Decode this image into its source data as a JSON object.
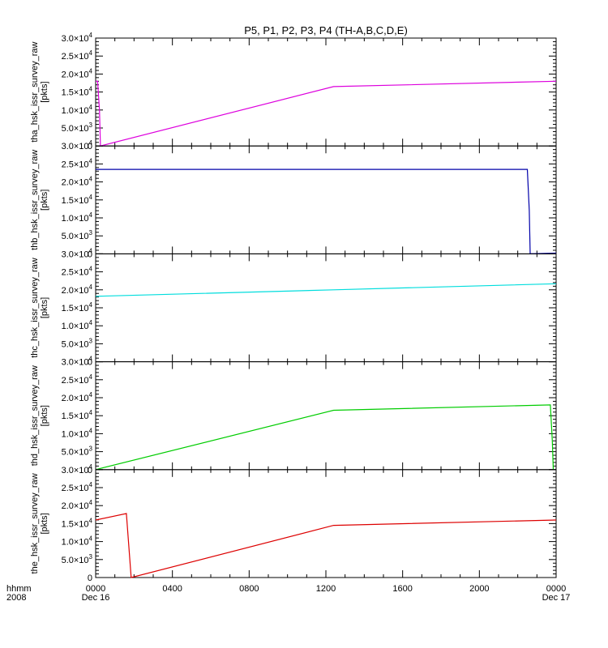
{
  "chart_data": {
    "type": "line",
    "title": "P5, P1, P2, P3, P4 (TH-A,B,C,D,E)",
    "time_label_line1": "hhmm",
    "time_label_line2": "2008",
    "x_ticks": [
      {
        "hhmm": "0000",
        "date": "Dec 16",
        "hours": 0
      },
      {
        "hhmm": "0400",
        "date": "",
        "hours": 4
      },
      {
        "hhmm": "0800",
        "date": "",
        "hours": 8
      },
      {
        "hhmm": "1200",
        "date": "",
        "hours": 12
      },
      {
        "hhmm": "1600",
        "date": "",
        "hours": 16
      },
      {
        "hhmm": "2000",
        "date": "",
        "hours": 20
      },
      {
        "hhmm": "0000",
        "date": "Dec 17",
        "hours": 24
      }
    ],
    "xlim_hours": [
      0,
      24
    ],
    "ylim": [
      0,
      30000
    ],
    "y_ticks": [
      {
        "mant": "0",
        "exp": "",
        "value": 0
      },
      {
        "mant": "5.0×10",
        "exp": "3",
        "value": 5000
      },
      {
        "mant": "1.0×10",
        "exp": "4",
        "value": 10000
      },
      {
        "mant": "1.5×10",
        "exp": "4",
        "value": 15000
      },
      {
        "mant": "2.0×10",
        "exp": "4",
        "value": 20000
      },
      {
        "mant": "2.5×10",
        "exp": "4",
        "value": 25000
      },
      {
        "mant": "3.0×10",
        "exp": "4",
        "value": 30000
      }
    ],
    "panels": [
      {
        "ylabel": "tha_hsk_issr_survey_raw",
        "unit": "[pkts]",
        "color": "#dd00dd",
        "x": [
          0,
          0.1,
          0.2,
          0.25,
          12.4,
          24
        ],
        "y": [
          18000,
          18000,
          10000,
          0,
          16500,
          18000
        ]
      },
      {
        "ylabel": "thb_hsk_issr_survey_raw",
        "unit": "[pkts]",
        "color": "#0000aa",
        "x": [
          0,
          22.5,
          22.6,
          22.65,
          24
        ],
        "y": [
          23500,
          23500,
          12000,
          0,
          200
        ]
      },
      {
        "ylabel": "thc_hsk_issr_survey_raw",
        "unit": "[pkts]",
        "color": "#00dddd",
        "x": [
          0,
          12.4,
          24
        ],
        "y": [
          18200,
          20000,
          21700
        ]
      },
      {
        "ylabel": "thd_hsk_issr_survey_raw",
        "unit": "[pkts]",
        "color": "#00cc00",
        "x": [
          0,
          12.4,
          23.7,
          23.8,
          23.85
        ],
        "y": [
          0,
          16500,
          18000,
          8000,
          0
        ]
      },
      {
        "ylabel": "the_hsk_issr_survey_raw",
        "unit": "[pkts]",
        "color": "#dd0000",
        "x": [
          0,
          1.6,
          1.85,
          12.4,
          24
        ],
        "y": [
          16000,
          17800,
          0,
          14500,
          16000
        ]
      }
    ]
  }
}
